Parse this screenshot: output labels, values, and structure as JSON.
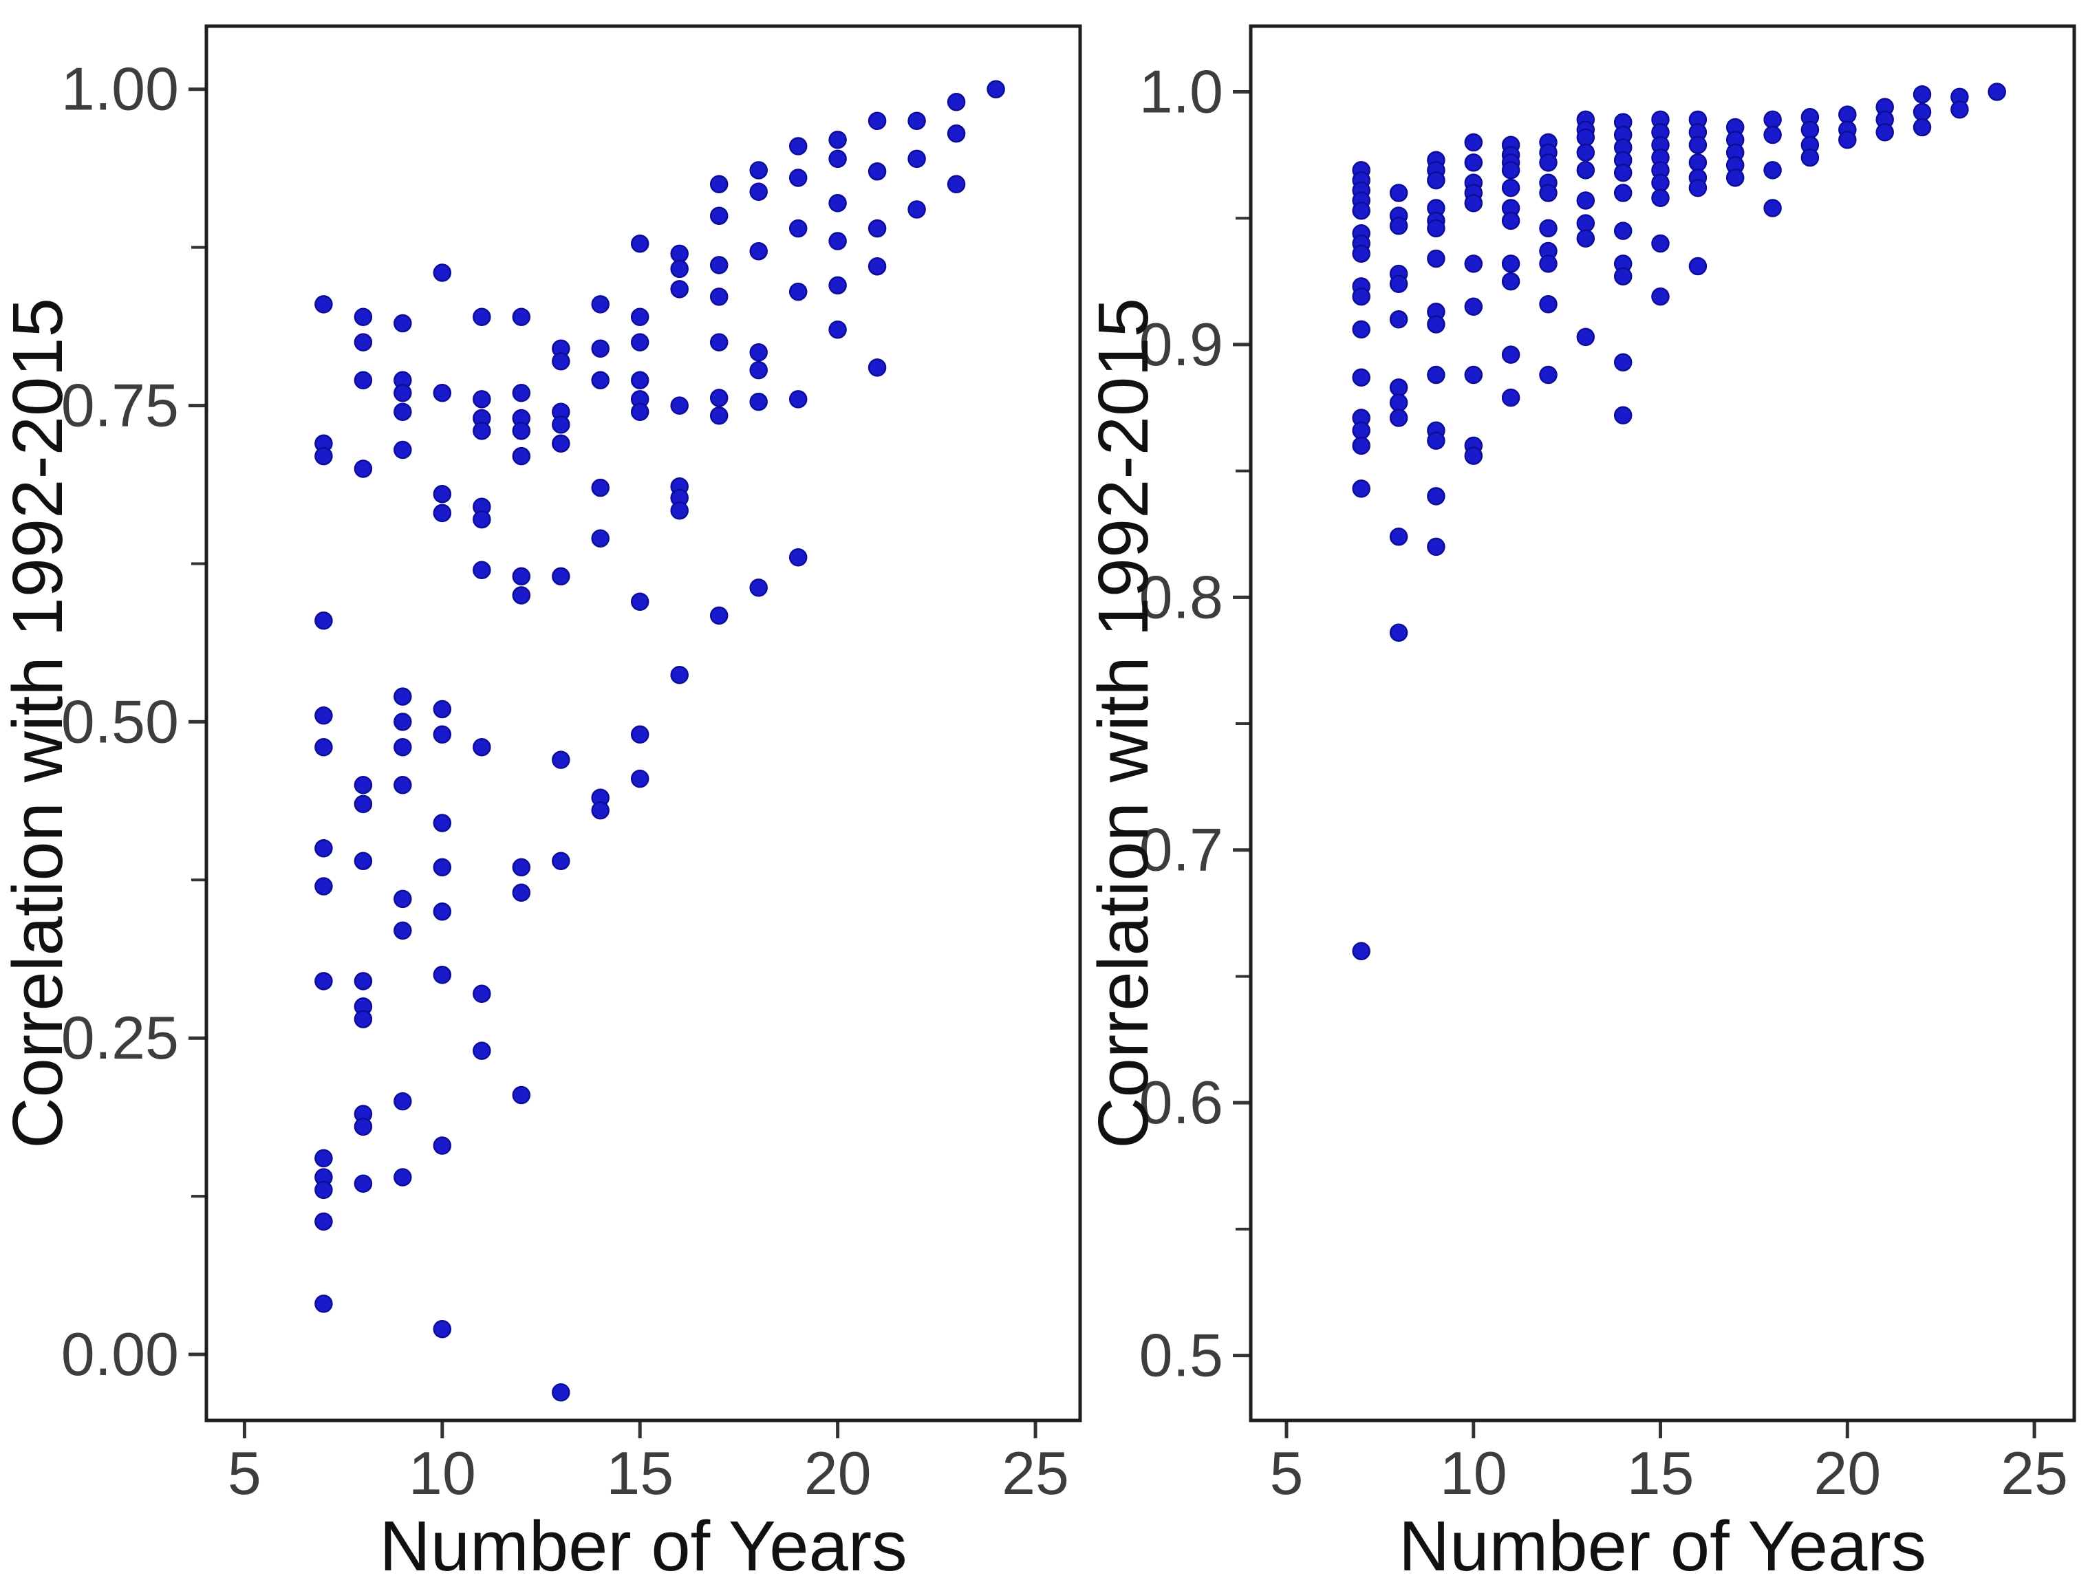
{
  "figure": {
    "background": "#ffffff",
    "point_fill": "#1a1acd",
    "point_stroke": "#0d0d9a",
    "axis_color": "#1f1f1f",
    "tick_color": "#333333",
    "tick_label_color": "#3d3d3d",
    "axis_title_color": "#111111"
  },
  "chart_data": [
    {
      "id": "left-panel",
      "type": "scatter",
      "title": "",
      "xlabel": "Number of Years",
      "ylabel": "Correlation with 1992-2015",
      "grid": false,
      "legend": null,
      "xlim": [
        4.036,
        26.13
      ],
      "ylim": [
        -0.0522,
        1.0499
      ],
      "x_ticks": {
        "values": [
          5,
          10,
          15,
          20,
          25
        ],
        "labels": [
          "5",
          "10",
          "15",
          "20",
          "25"
        ]
      },
      "y_ticks": {
        "values": [
          0.0,
          0.25,
          0.5,
          0.75,
          1.0
        ],
        "labels": [
          "0.00",
          "0.25",
          "0.50",
          "0.75",
          "1.00"
        ]
      },
      "y_minor_ticks": [
        0.125,
        0.375,
        0.625,
        0.875
      ],
      "points": [
        [
          7,
          0.83
        ],
        [
          7,
          0.72
        ],
        [
          7,
          0.71
        ],
        [
          7,
          0.58
        ],
        [
          7,
          0.505
        ],
        [
          7,
          0.48
        ],
        [
          7,
          0.4
        ],
        [
          7,
          0.37
        ],
        [
          7,
          0.295
        ],
        [
          7,
          0.155
        ],
        [
          7,
          0.14
        ],
        [
          7,
          0.13
        ],
        [
          7,
          0.105
        ],
        [
          7,
          0.04
        ],
        [
          8,
          0.82
        ],
        [
          8,
          0.8
        ],
        [
          8,
          0.77
        ],
        [
          8,
          0.7
        ],
        [
          8,
          0.45
        ],
        [
          8,
          0.435
        ],
        [
          8,
          0.39
        ],
        [
          8,
          0.295
        ],
        [
          8,
          0.275
        ],
        [
          8,
          0.265
        ],
        [
          8,
          0.19
        ],
        [
          8,
          0.18
        ],
        [
          8,
          0.135
        ],
        [
          9,
          0.815
        ],
        [
          9,
          0.77
        ],
        [
          9,
          0.76
        ],
        [
          9,
          0.745
        ],
        [
          9,
          0.715
        ],
        [
          9,
          0.52
        ],
        [
          9,
          0.5
        ],
        [
          9,
          0.48
        ],
        [
          9,
          0.45
        ],
        [
          9,
          0.36
        ],
        [
          9,
          0.335
        ],
        [
          9,
          0.2
        ],
        [
          9,
          0.14
        ],
        [
          10,
          0.855
        ],
        [
          10,
          0.76
        ],
        [
          10,
          0.68
        ],
        [
          10,
          0.665
        ],
        [
          10,
          0.51
        ],
        [
          10,
          0.49
        ],
        [
          10,
          0.42
        ],
        [
          10,
          0.385
        ],
        [
          10,
          0.35
        ],
        [
          10,
          0.3
        ],
        [
          10,
          0.165
        ],
        [
          10,
          0.02
        ],
        [
          11,
          0.82
        ],
        [
          11,
          0.755
        ],
        [
          11,
          0.74
        ],
        [
          11,
          0.73
        ],
        [
          11,
          0.67
        ],
        [
          11,
          0.66
        ],
        [
          11,
          0.62
        ],
        [
          11,
          0.48
        ],
        [
          11,
          0.285
        ],
        [
          11,
          0.24
        ],
        [
          12,
          0.82
        ],
        [
          12,
          0.76
        ],
        [
          12,
          0.74
        ],
        [
          12,
          0.73
        ],
        [
          12,
          0.71
        ],
        [
          12,
          0.615
        ],
        [
          12,
          0.6
        ],
        [
          12,
          0.385
        ],
        [
          12,
          0.365
        ],
        [
          12,
          0.205
        ],
        [
          13,
          0.795
        ],
        [
          13,
          0.785
        ],
        [
          13,
          0.745
        ],
        [
          13,
          0.735
        ],
        [
          13,
          0.72
        ],
        [
          13,
          0.615
        ],
        [
          13,
          0.47
        ],
        [
          13,
          0.39
        ],
        [
          13,
          -0.03
        ],
        [
          14,
          0.83
        ],
        [
          14,
          0.795
        ],
        [
          14,
          0.77
        ],
        [
          14,
          0.685
        ],
        [
          14,
          0.645
        ],
        [
          14,
          0.44
        ],
        [
          14,
          0.43
        ],
        [
          15,
          0.878
        ],
        [
          15,
          0.82
        ],
        [
          15,
          0.8
        ],
        [
          15,
          0.77
        ],
        [
          15,
          0.755
        ],
        [
          15,
          0.745
        ],
        [
          15,
          0.595
        ],
        [
          15,
          0.49
        ],
        [
          15,
          0.455
        ],
        [
          16,
          0.87
        ],
        [
          16,
          0.858
        ],
        [
          16,
          0.842
        ],
        [
          16,
          0.75
        ],
        [
          16,
          0.686
        ],
        [
          16,
          0.677
        ],
        [
          16,
          0.667
        ],
        [
          16,
          0.537
        ],
        [
          17,
          0.925
        ],
        [
          17,
          0.9
        ],
        [
          17,
          0.861
        ],
        [
          17,
          0.836
        ],
        [
          17,
          0.8
        ],
        [
          17,
          0.756
        ],
        [
          17,
          0.742
        ],
        [
          17,
          0.584
        ],
        [
          18,
          0.936
        ],
        [
          18,
          0.919
        ],
        [
          18,
          0.872
        ],
        [
          18,
          0.792
        ],
        [
          18,
          0.778
        ],
        [
          18,
          0.753
        ],
        [
          18,
          0.606
        ],
        [
          19,
          0.955
        ],
        [
          19,
          0.93
        ],
        [
          19,
          0.89
        ],
        [
          19,
          0.84
        ],
        [
          19,
          0.755
        ],
        [
          19,
          0.63
        ],
        [
          20,
          0.96
        ],
        [
          20,
          0.945
        ],
        [
          20,
          0.91
        ],
        [
          20,
          0.88
        ],
        [
          20,
          0.845
        ],
        [
          20,
          0.81
        ],
        [
          21,
          0.975
        ],
        [
          21,
          0.935
        ],
        [
          21,
          0.89
        ],
        [
          21,
          0.86
        ],
        [
          21,
          0.78
        ],
        [
          22,
          0.975
        ],
        [
          22,
          0.945
        ],
        [
          22,
          0.905
        ],
        [
          23,
          0.99
        ],
        [
          23,
          0.965
        ],
        [
          23,
          0.925
        ],
        [
          24,
          1.0
        ]
      ]
    },
    {
      "id": "right-panel",
      "type": "scatter",
      "title": "",
      "xlabel": "Number of Years",
      "ylabel": "Correlation with 1992-2015",
      "grid": false,
      "legend": null,
      "xlim": [
        4.043,
        26.066
      ],
      "ylim": [
        0.4743,
        1.026
      ],
      "x_ticks": {
        "values": [
          5,
          10,
          15,
          20,
          25
        ],
        "labels": [
          "5",
          "10",
          "15",
          "20",
          "25"
        ]
      },
      "y_ticks": {
        "values": [
          0.5,
          0.6,
          0.7,
          0.8,
          0.9,
          1.0
        ],
        "labels": [
          "0.5",
          "0.6",
          "0.7",
          "0.8",
          "0.9",
          "1.0"
        ]
      },
      "y_minor_ticks": [
        0.55,
        0.65,
        0.75,
        0.85,
        0.95
      ],
      "points": [
        [
          7,
          0.969
        ],
        [
          7,
          0.965
        ],
        [
          7,
          0.961
        ],
        [
          7,
          0.957
        ],
        [
          7,
          0.953
        ],
        [
          7,
          0.944
        ],
        [
          7,
          0.94
        ],
        [
          7,
          0.936
        ],
        [
          7,
          0.923
        ],
        [
          7,
          0.919
        ],
        [
          7,
          0.906
        ],
        [
          7,
          0.887
        ],
        [
          7,
          0.871
        ],
        [
          7,
          0.866
        ],
        [
          7,
          0.86
        ],
        [
          7,
          0.843
        ],
        [
          7,
          0.66
        ],
        [
          8,
          0.96
        ],
        [
          8,
          0.951
        ],
        [
          8,
          0.947
        ],
        [
          8,
          0.928
        ],
        [
          8,
          0.924
        ],
        [
          8,
          0.91
        ],
        [
          8,
          0.883
        ],
        [
          8,
          0.877
        ],
        [
          8,
          0.871
        ],
        [
          8,
          0.824
        ],
        [
          8,
          0.786
        ],
        [
          9,
          0.973
        ],
        [
          9,
          0.969
        ],
        [
          9,
          0.965
        ],
        [
          9,
          0.954
        ],
        [
          9,
          0.949
        ],
        [
          9,
          0.946
        ],
        [
          9,
          0.934
        ],
        [
          9,
          0.913
        ],
        [
          9,
          0.908
        ],
        [
          9,
          0.888
        ],
        [
          9,
          0.866
        ],
        [
          9,
          0.862
        ],
        [
          9,
          0.84
        ],
        [
          9,
          0.82
        ],
        [
          10,
          0.98
        ],
        [
          10,
          0.972
        ],
        [
          10,
          0.964
        ],
        [
          10,
          0.96
        ],
        [
          10,
          0.956
        ],
        [
          10,
          0.932
        ],
        [
          10,
          0.915
        ],
        [
          10,
          0.888
        ],
        [
          10,
          0.86
        ],
        [
          10,
          0.856
        ],
        [
          11,
          0.979
        ],
        [
          11,
          0.975
        ],
        [
          11,
          0.972
        ],
        [
          11,
          0.969
        ],
        [
          11,
          0.962
        ],
        [
          11,
          0.954
        ],
        [
          11,
          0.949
        ],
        [
          11,
          0.932
        ],
        [
          11,
          0.925
        ],
        [
          11,
          0.896
        ],
        [
          11,
          0.879
        ],
        [
          12,
          0.98
        ],
        [
          12,
          0.976
        ],
        [
          12,
          0.972
        ],
        [
          12,
          0.964
        ],
        [
          12,
          0.96
        ],
        [
          12,
          0.946
        ],
        [
          12,
          0.937
        ],
        [
          12,
          0.932
        ],
        [
          12,
          0.916
        ],
        [
          12,
          0.888
        ],
        [
          13,
          0.989
        ],
        [
          13,
          0.985
        ],
        [
          13,
          0.982
        ],
        [
          13,
          0.976
        ],
        [
          13,
          0.969
        ],
        [
          13,
          0.957
        ],
        [
          13,
          0.948
        ],
        [
          13,
          0.942
        ],
        [
          13,
          0.903
        ],
        [
          14,
          0.988
        ],
        [
          14,
          0.983
        ],
        [
          14,
          0.978
        ],
        [
          14,
          0.973
        ],
        [
          14,
          0.968
        ],
        [
          14,
          0.96
        ],
        [
          14,
          0.945
        ],
        [
          14,
          0.932
        ],
        [
          14,
          0.927
        ],
        [
          14,
          0.893
        ],
        [
          14,
          0.872
        ],
        [
          15,
          0.989
        ],
        [
          15,
          0.984
        ],
        [
          15,
          0.979
        ],
        [
          15,
          0.974
        ],
        [
          15,
          0.969
        ],
        [
          15,
          0.964
        ],
        [
          15,
          0.958
        ],
        [
          15,
          0.94
        ],
        [
          15,
          0.919
        ],
        [
          16,
          0.989
        ],
        [
          16,
          0.984
        ],
        [
          16,
          0.979
        ],
        [
          16,
          0.972
        ],
        [
          16,
          0.966
        ],
        [
          16,
          0.962
        ],
        [
          16,
          0.931
        ],
        [
          17,
          0.986
        ],
        [
          17,
          0.981
        ],
        [
          17,
          0.976
        ],
        [
          17,
          0.971
        ],
        [
          17,
          0.966
        ],
        [
          18,
          0.989
        ],
        [
          18,
          0.983
        ],
        [
          18,
          0.969
        ],
        [
          18,
          0.954
        ],
        [
          19,
          0.99
        ],
        [
          19,
          0.985
        ],
        [
          19,
          0.979
        ],
        [
          19,
          0.974
        ],
        [
          20,
          0.991
        ],
        [
          20,
          0.985
        ],
        [
          20,
          0.981
        ],
        [
          21,
          0.994
        ],
        [
          21,
          0.989
        ],
        [
          21,
          0.984
        ],
        [
          22,
          0.999
        ],
        [
          22,
          0.992
        ],
        [
          22,
          0.986
        ],
        [
          23,
          0.998
        ],
        [
          23,
          0.993
        ],
        [
          24,
          1.0
        ]
      ]
    }
  ]
}
